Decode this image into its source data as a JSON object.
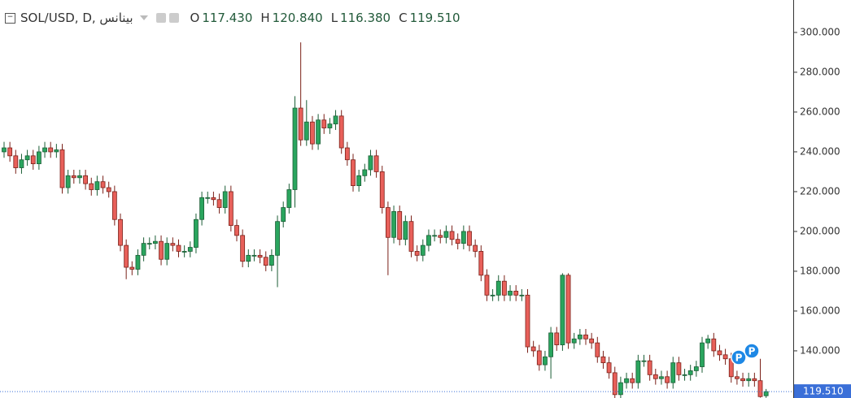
{
  "chart_data": {
    "type": "candlestick",
    "title": "SOL/USD, D, بينانس",
    "ohlc_legend": [
      {
        "key": "O",
        "value": "117.430"
      },
      {
        "key": "H",
        "value": "120.840"
      },
      {
        "key": "L",
        "value": "116.380"
      },
      {
        "key": "C",
        "value": "119.510"
      }
    ],
    "up_color": "#2aa55e",
    "up_border": "#1b5e36",
    "down_color": "#e8605a",
    "down_border": "#7a2018",
    "ylim": [
      116.3,
      316.3
    ],
    "yticks": [
      {
        "value": 140,
        "label": "140.000"
      },
      {
        "value": 160,
        "label": "160.000"
      },
      {
        "value": 180,
        "label": "180.000"
      },
      {
        "value": 200,
        "label": "200.000"
      },
      {
        "value": 220,
        "label": "220.000"
      },
      {
        "value": 240,
        "label": "240.000"
      },
      {
        "value": 260,
        "label": "260.000"
      },
      {
        "value": 280,
        "label": "280.000"
      },
      {
        "value": 300,
        "label": "300.000"
      }
    ],
    "last_price": {
      "value": 119.51,
      "label": "119.510"
    },
    "markers": [
      "P",
      "P"
    ],
    "open": [
      240,
      242,
      238,
      232,
      236,
      238,
      234,
      240,
      242,
      240,
      241,
      222,
      228,
      227,
      228,
      224,
      221,
      225,
      222,
      220,
      206,
      193,
      182,
      181,
      188,
      194,
      194,
      195,
      186,
      194,
      193,
      190,
      190,
      192,
      206,
      217,
      217,
      216,
      212,
      220,
      203,
      198,
      185,
      188,
      188,
      187,
      183,
      188,
      205,
      212,
      221,
      262,
      246,
      255,
      244,
      256,
      252,
      254,
      258,
      242,
      236,
      223,
      228,
      231,
      238,
      230,
      212,
      197,
      210,
      196,
      205,
      190,
      188,
      193,
      198,
      198,
      197,
      200,
      196,
      194,
      200,
      193,
      190,
      178,
      168,
      168,
      175,
      168,
      170,
      168,
      168,
      142,
      140,
      133,
      137,
      149,
      143,
      178,
      144,
      146,
      148,
      146,
      144,
      137,
      134,
      129,
      118,
      124,
      126,
      124,
      135,
      135,
      128,
      126,
      127,
      124,
      134,
      128,
      128,
      130,
      132,
      144,
      146,
      140,
      138,
      136,
      127,
      126,
      125,
      126,
      125,
      117.43
    ],
    "high": [
      245,
      245,
      241,
      239,
      241,
      241,
      243,
      245,
      245,
      244,
      244,
      231,
      231,
      231,
      231,
      227,
      228,
      228,
      225,
      223,
      209,
      196,
      185,
      191,
      197,
      197,
      198,
      198,
      197,
      197,
      196,
      193,
      195,
      209,
      220,
      220,
      220,
      219,
      223,
      223,
      206,
      201,
      191,
      191,
      191,
      190,
      191,
      208,
      215,
      224,
      268,
      295,
      266,
      258,
      259,
      259,
      257,
      261,
      261,
      245,
      239,
      231,
      234,
      241,
      241,
      233,
      215,
      213,
      213,
      208,
      208,
      193,
      196,
      201,
      201,
      201,
      203,
      203,
      199,
      203,
      203,
      196,
      193,
      181,
      171,
      178,
      178,
      173,
      173,
      171,
      171,
      145,
      143,
      140,
      152,
      152,
      179,
      179,
      149,
      151,
      151,
      149,
      147,
      140,
      137,
      132,
      127,
      129,
      129,
      138,
      138,
      138,
      131,
      130,
      130,
      137,
      137,
      131,
      133,
      135,
      147,
      148,
      149,
      143,
      141,
      139,
      130,
      129,
      129,
      129,
      136,
      120.84
    ],
    "low": [
      237,
      235,
      229,
      229,
      233,
      231,
      231,
      237,
      237,
      237,
      219,
      219,
      224,
      224,
      221,
      218,
      218,
      219,
      217,
      203,
      190,
      176,
      178,
      178,
      185,
      191,
      191,
      183,
      183,
      190,
      187,
      187,
      187,
      189,
      203,
      214,
      213,
      209,
      209,
      200,
      195,
      182,
      182,
      185,
      184,
      180,
      180,
      172,
      202,
      209,
      212,
      243,
      243,
      241,
      241,
      249,
      249,
      251,
      239,
      233,
      220,
      220,
      225,
      228,
      227,
      209,
      178,
      194,
      193,
      193,
      187,
      185,
      185,
      190,
      195,
      194,
      194,
      193,
      191,
      191,
      190,
      187,
      175,
      165,
      165,
      165,
      165,
      165,
      165,
      165,
      139,
      137,
      130,
      130,
      126,
      140,
      140,
      141,
      141,
      143,
      143,
      141,
      134,
      131,
      126,
      116,
      116,
      121,
      121,
      121,
      132,
      125,
      123,
      123,
      121,
      121,
      125,
      125,
      125,
      127,
      129,
      141,
      137,
      135,
      133,
      124,
      123,
      122,
      122,
      122,
      116.5,
      116.38
    ],
    "close": [
      242,
      238,
      232,
      236,
      238,
      234,
      240,
      242,
      240,
      241,
      222,
      228,
      227,
      228,
      224,
      221,
      225,
      222,
      220,
      206,
      193,
      182,
      181,
      188,
      194,
      194,
      195,
      186,
      194,
      193,
      190,
      190,
      192,
      206,
      217,
      217,
      216,
      212,
      220,
      203,
      198,
      185,
      188,
      188,
      187,
      183,
      188,
      205,
      212,
      221,
      262,
      246,
      255,
      244,
      256,
      252,
      254,
      258,
      242,
      236,
      223,
      228,
      231,
      238,
      230,
      212,
      197,
      210,
      196,
      205,
      190,
      188,
      193,
      198,
      198,
      197,
      200,
      196,
      194,
      200,
      193,
      190,
      178,
      168,
      168,
      175,
      168,
      170,
      168,
      168,
      142,
      140,
      133,
      137,
      149,
      143,
      178,
      144,
      146,
      148,
      146,
      144,
      137,
      134,
      129,
      118,
      124,
      126,
      124,
      135,
      135,
      128,
      126,
      127,
      124,
      134,
      128,
      128,
      130,
      132,
      144,
      146,
      140,
      138,
      136,
      127,
      126,
      125,
      126,
      125,
      117,
      119.51
    ]
  }
}
